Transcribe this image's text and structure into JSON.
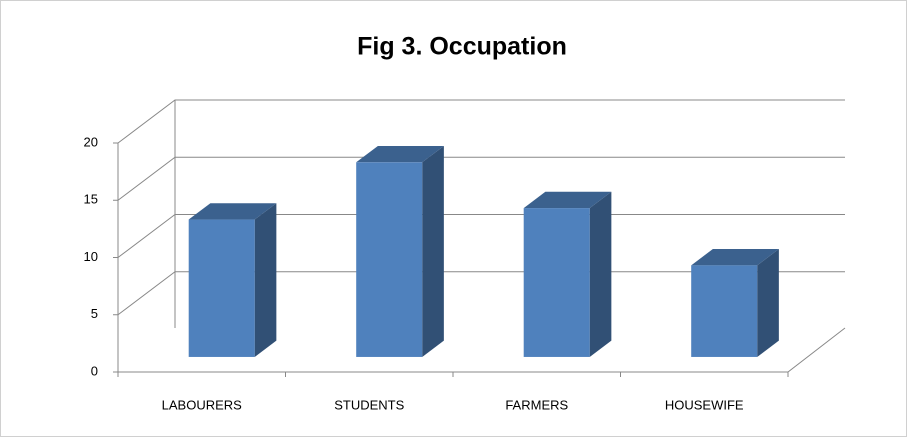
{
  "chart_data": {
    "type": "bar3d",
    "title": "Fig 3. Occupation",
    "categories": [
      "LABOURERS",
      "STUDENTS",
      "FARMERS",
      "HOUSEWIFE"
    ],
    "values": [
      12,
      17,
      13,
      8
    ],
    "color": "#4f81bd",
    "ylim": [
      0,
      20
    ],
    "yticks": [
      0,
      5,
      10,
      15,
      20
    ],
    "grid": true
  }
}
